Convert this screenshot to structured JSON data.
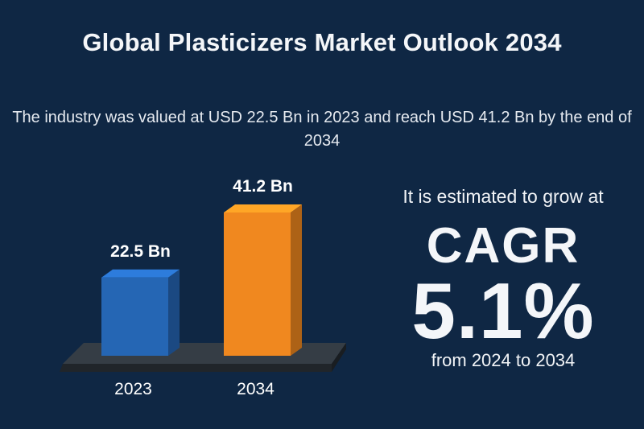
{
  "header": {
    "title": "Global Plasticizers Market Outlook 2034",
    "subtitle": "The industry was valued at USD 22.5 Bn in 2023 and reach USD 41.2 Bn by the end of 2034"
  },
  "chart_data": {
    "type": "bar",
    "categories": [
      "2023",
      "2034"
    ],
    "values": [
      22.5,
      41.2
    ],
    "value_labels": [
      "22.5 Bn",
      "41.2 Bn"
    ],
    "bar_colors": [
      "#2566b4",
      "#f0881f"
    ],
    "ylim": [
      0,
      41.2
    ],
    "grid": false,
    "style": "3d"
  },
  "cagr": {
    "intro": "It is estimated to grow at",
    "word": "CAGR",
    "value": "5.1%",
    "period": "from 2024 to 2034"
  },
  "colors": {
    "background": "#0f2744",
    "platform": "#2e353c",
    "text": "#ffffff"
  }
}
